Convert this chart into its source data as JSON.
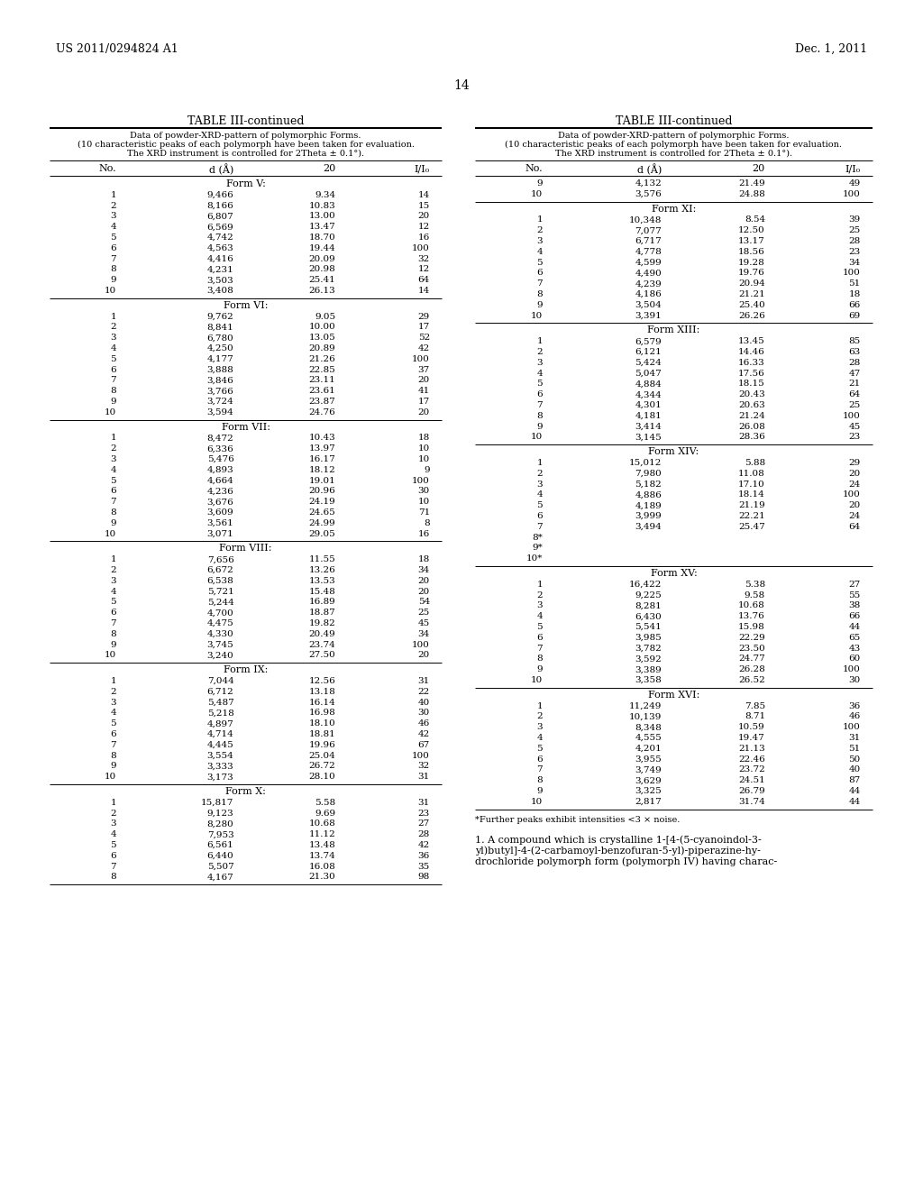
{
  "header_left": "US 2011/0294824 A1",
  "header_right": "Dec. 1, 2011",
  "page_number": "14",
  "table_title": "TABLE III-continued",
  "table_subtitle_line1": "Data of powder-XRD-pattern of polymorphic Forms.",
  "table_subtitle_line2": "(10 characteristic peaks of each polymorph have been taken for evaluation.",
  "table_subtitle_line3": "The XRD instrument is controlled for 2Theta ± 0.1°).",
  "col_headers": [
    "No.",
    "d (Å)",
    "20",
    "I/I₀"
  ],
  "left_sections": [
    {
      "form": "Form V:",
      "rows": [
        [
          "1",
          "9,466",
          "9.34",
          "14"
        ],
        [
          "2",
          "8,166",
          "10.83",
          "15"
        ],
        [
          "3",
          "6,807",
          "13.00",
          "20"
        ],
        [
          "4",
          "6,569",
          "13.47",
          "12"
        ],
        [
          "5",
          "4,742",
          "18.70",
          "16"
        ],
        [
          "6",
          "4,563",
          "19.44",
          "100"
        ],
        [
          "7",
          "4,416",
          "20.09",
          "32"
        ],
        [
          "8",
          "4,231",
          "20.98",
          "12"
        ],
        [
          "9",
          "3,503",
          "25.41",
          "64"
        ],
        [
          "10",
          "3,408",
          "26.13",
          "14"
        ]
      ]
    },
    {
      "form": "Form VI:",
      "rows": [
        [
          "1",
          "9,762",
          "9.05",
          "29"
        ],
        [
          "2",
          "8,841",
          "10.00",
          "17"
        ],
        [
          "3",
          "6,780",
          "13.05",
          "52"
        ],
        [
          "4",
          "4,250",
          "20.89",
          "42"
        ],
        [
          "5",
          "4,177",
          "21.26",
          "100"
        ],
        [
          "6",
          "3,888",
          "22.85",
          "37"
        ],
        [
          "7",
          "3,846",
          "23.11",
          "20"
        ],
        [
          "8",
          "3,766",
          "23.61",
          "41"
        ],
        [
          "9",
          "3,724",
          "23.87",
          "17"
        ],
        [
          "10",
          "3,594",
          "24.76",
          "20"
        ]
      ]
    },
    {
      "form": "Form VII:",
      "rows": [
        [
          "1",
          "8,472",
          "10.43",
          "18"
        ],
        [
          "2",
          "6,336",
          "13.97",
          "10"
        ],
        [
          "3",
          "5,476",
          "16.17",
          "10"
        ],
        [
          "4",
          "4,893",
          "18.12",
          "9"
        ],
        [
          "5",
          "4,664",
          "19.01",
          "100"
        ],
        [
          "6",
          "4,236",
          "20.96",
          "30"
        ],
        [
          "7",
          "3,676",
          "24.19",
          "10"
        ],
        [
          "8",
          "3,609",
          "24.65",
          "71"
        ],
        [
          "9",
          "3,561",
          "24.99",
          "8"
        ],
        [
          "10",
          "3,071",
          "29.05",
          "16"
        ]
      ]
    },
    {
      "form": "Form VIII:",
      "rows": [
        [
          "1",
          "7,656",
          "11.55",
          "18"
        ],
        [
          "2",
          "6,672",
          "13.26",
          "34"
        ],
        [
          "3",
          "6,538",
          "13.53",
          "20"
        ],
        [
          "4",
          "5,721",
          "15.48",
          "20"
        ],
        [
          "5",
          "5,244",
          "16.89",
          "54"
        ],
        [
          "6",
          "4,700",
          "18.87",
          "25"
        ],
        [
          "7",
          "4,475",
          "19.82",
          "45"
        ],
        [
          "8",
          "4,330",
          "20.49",
          "34"
        ],
        [
          "9",
          "3,745",
          "23.74",
          "100"
        ],
        [
          "10",
          "3,240",
          "27.50",
          "20"
        ]
      ]
    },
    {
      "form": "Form IX:",
      "rows": [
        [
          "1",
          "7,044",
          "12.56",
          "31"
        ],
        [
          "2",
          "6,712",
          "13.18",
          "22"
        ],
        [
          "3",
          "5,487",
          "16.14",
          "40"
        ],
        [
          "4",
          "5,218",
          "16.98",
          "30"
        ],
        [
          "5",
          "4,897",
          "18.10",
          "46"
        ],
        [
          "6",
          "4,714",
          "18.81",
          "42"
        ],
        [
          "7",
          "4,445",
          "19.96",
          "67"
        ],
        [
          "8",
          "3,554",
          "25.04",
          "100"
        ],
        [
          "9",
          "3,333",
          "26.72",
          "32"
        ],
        [
          "10",
          "3,173",
          "28.10",
          "31"
        ]
      ]
    },
    {
      "form": "Form X:",
      "rows": [
        [
          "1",
          "15,817",
          "5.58",
          "31"
        ],
        [
          "2",
          "9,123",
          "9.69",
          "23"
        ],
        [
          "3",
          "8,280",
          "10.68",
          "27"
        ],
        [
          "4",
          "7,953",
          "11.12",
          "28"
        ],
        [
          "5",
          "6,561",
          "13.48",
          "42"
        ],
        [
          "6",
          "6,440",
          "13.74",
          "36"
        ],
        [
          "7",
          "5,507",
          "16.08",
          "35"
        ],
        [
          "8",
          "4,167",
          "21.30",
          "98"
        ]
      ]
    }
  ],
  "right_sections": [
    {
      "form": "",
      "rows": [
        [
          "9",
          "4,132",
          "21.49",
          "49"
        ],
        [
          "10",
          "3,576",
          "24.88",
          "100"
        ]
      ]
    },
    {
      "form": "Form XI:",
      "rows": [
        [
          "1",
          "10,348",
          "8.54",
          "39"
        ],
        [
          "2",
          "7,077",
          "12.50",
          "25"
        ],
        [
          "3",
          "6,717",
          "13.17",
          "28"
        ],
        [
          "4",
          "4,778",
          "18.56",
          "23"
        ],
        [
          "5",
          "4,599",
          "19.28",
          "34"
        ],
        [
          "6",
          "4,490",
          "19.76",
          "100"
        ],
        [
          "7",
          "4,239",
          "20.94",
          "51"
        ],
        [
          "8",
          "4,186",
          "21.21",
          "18"
        ],
        [
          "9",
          "3,504",
          "25.40",
          "66"
        ],
        [
          "10",
          "3,391",
          "26.26",
          "69"
        ]
      ]
    },
    {
      "form": "Form XIII:",
      "rows": [
        [
          "1",
          "6,579",
          "13.45",
          "85"
        ],
        [
          "2",
          "6,121",
          "14.46",
          "63"
        ],
        [
          "3",
          "5,424",
          "16.33",
          "28"
        ],
        [
          "4",
          "5,047",
          "17.56",
          "47"
        ],
        [
          "5",
          "4,884",
          "18.15",
          "21"
        ],
        [
          "6",
          "4,344",
          "20.43",
          "64"
        ],
        [
          "7",
          "4,301",
          "20.63",
          "25"
        ],
        [
          "8",
          "4,181",
          "21.24",
          "100"
        ],
        [
          "9",
          "3,414",
          "26.08",
          "45"
        ],
        [
          "10",
          "3,145",
          "28.36",
          "23"
        ]
      ]
    },
    {
      "form": "Form XIV:",
      "rows": [
        [
          "1",
          "15,012",
          "5.88",
          "29"
        ],
        [
          "2",
          "7,980",
          "11.08",
          "20"
        ],
        [
          "3",
          "5,182",
          "17.10",
          "24"
        ],
        [
          "4",
          "4,886",
          "18.14",
          "100"
        ],
        [
          "5",
          "4,189",
          "21.19",
          "20"
        ],
        [
          "6",
          "3,999",
          "22.21",
          "24"
        ],
        [
          "7",
          "3,494",
          "25.47",
          "64"
        ],
        [
          "8*",
          "",
          "",
          ""
        ],
        [
          "9*",
          "",
          "",
          ""
        ],
        [
          "10*",
          "",
          "",
          ""
        ]
      ]
    },
    {
      "form": "Form XV:",
      "rows": [
        [
          "1",
          "16,422",
          "5.38",
          "27"
        ],
        [
          "2",
          "9,225",
          "9.58",
          "55"
        ],
        [
          "3",
          "8,281",
          "10.68",
          "38"
        ],
        [
          "4",
          "6,430",
          "13.76",
          "66"
        ],
        [
          "5",
          "5,541",
          "15.98",
          "44"
        ],
        [
          "6",
          "3,985",
          "22.29",
          "65"
        ],
        [
          "7",
          "3,782",
          "23.50",
          "43"
        ],
        [
          "8",
          "3,592",
          "24.77",
          "60"
        ],
        [
          "9",
          "3,389",
          "26.28",
          "100"
        ],
        [
          "10",
          "3,358",
          "26.52",
          "30"
        ]
      ]
    },
    {
      "form": "Form XVI:",
      "rows": [
        [
          "1",
          "11,249",
          "7.85",
          "36"
        ],
        [
          "2",
          "10,139",
          "8.71",
          "46"
        ],
        [
          "3",
          "8,348",
          "10.59",
          "100"
        ],
        [
          "4",
          "4,555",
          "19.47",
          "31"
        ],
        [
          "5",
          "4,201",
          "21.13",
          "51"
        ],
        [
          "6",
          "3,955",
          "22.46",
          "50"
        ],
        [
          "7",
          "3,749",
          "23.72",
          "40"
        ],
        [
          "8",
          "3,629",
          "24.51",
          "87"
        ],
        [
          "9",
          "3,325",
          "26.79",
          "44"
        ],
        [
          "10",
          "2,817",
          "31.74",
          "44"
        ]
      ]
    }
  ],
  "footnote": "*Further peaks exhibit intensities <3 × noise.",
  "claim_line1": "1. A compound which is crystalline 1-[4-(5-cyanoindol-3-",
  "claim_line2": "yl)butyl]-4-(2-carbamoyl-benzofuran-5-yl)-piperazine-hy-",
  "claim_line3": "drochloride polymorph form (polymorph IV) having charac-"
}
